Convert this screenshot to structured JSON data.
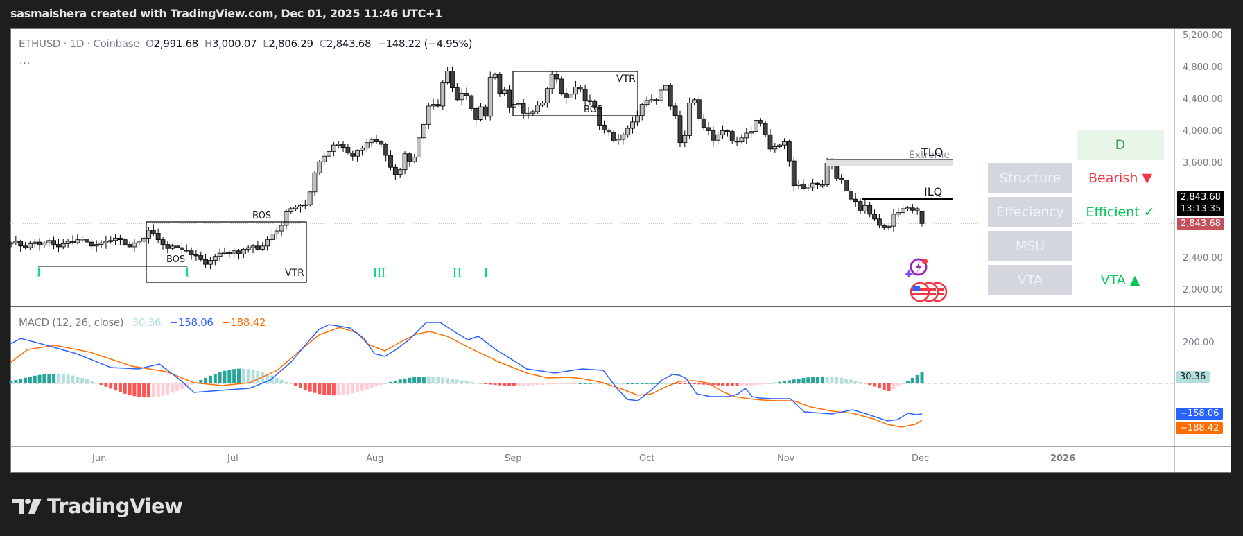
{
  "header": {
    "title": "sasmaishera created with TradingView.com, Dec 01, 2025 11:46 UTC+1"
  },
  "legend": {
    "symbol": "ETHUSD · 1D · Coinbase",
    "o_label": "O",
    "o": "2,991.68",
    "h_label": "H",
    "h": "3,000.07",
    "l_label": "L",
    "l": "2,806.29",
    "c_label": "C",
    "c": "2,843.68",
    "change": "−148.22 (−4.95%)",
    "more": "..."
  },
  "price_axis": {
    "labels": [
      "5,200.00",
      "4,800.00",
      "4,400.00",
      "4,000.00",
      "3,600.00",
      "2,400.00",
      "2,000.00"
    ],
    "values": [
      5200,
      4800,
      4400,
      4000,
      3600,
      2400,
      2000
    ],
    "last_price": "2,843.68",
    "countdown": "13:13:35",
    "close_tag": "2,843.68"
  },
  "macd": {
    "title": "MACD (12, 26, close)",
    "hist": "30.36",
    "macd": "−158.06",
    "signal": "−188.42",
    "axis_label": "200.00",
    "colors": {
      "macd": "#2962ff",
      "signal": "#ff6d00",
      "hist_up": "#26a69a",
      "hist_up_light": "#b2dfdb",
      "hist_dn": "#ff5252",
      "hist_dn_light": "#ffcdd2"
    }
  },
  "time_axis": {
    "labels": [
      "Jun",
      "Jul",
      "Aug",
      "Sep",
      "Oct",
      "Nov",
      "Dec",
      "2026"
    ]
  },
  "annotations": {
    "bos1": "BOS",
    "bos2": "BOS",
    "bos3": "BOS",
    "vtr1": "VTR",
    "vtr2": "VTR",
    "tlq": "TLQ",
    "ilq": "ILQ",
    "extreme": "Extreme"
  },
  "table": {
    "timeframe": "D",
    "rows": [
      {
        "label": "Structure",
        "value": "Bearish ▼",
        "color": "#f23645"
      },
      {
        "label": "Effeciency",
        "value": "Efficient ✓",
        "color": "#00c853"
      },
      {
        "label": "MSU",
        "value": "",
        "color": "#00c853"
      },
      {
        "label": "VTA",
        "value": "VTA ▲",
        "color": "#00c853"
      }
    ]
  },
  "colors": {
    "bg": "#1e1e1e",
    "up_body": "#c0c0c0",
    "down_body": "#404040",
    "wick": "#000000",
    "price_tag": "#c4505c"
  },
  "footer": {
    "brand": "TradingView"
  },
  "chart_data": {
    "type": "candlestick",
    "symbol": "ETHUSD",
    "interval": "1D",
    "exchange": "Coinbase",
    "last": {
      "open": 2991.68,
      "high": 3000.07,
      "low": 2806.29,
      "close": 2843.68,
      "change": -148.22,
      "change_pct": -4.95
    },
    "ylim": [
      1900,
      5300
    ],
    "x_ticks": [
      "Jun",
      "Jul",
      "Aug",
      "Sep",
      "Oct",
      "Nov",
      "Dec",
      "2026"
    ],
    "closes": [
      2600,
      2620,
      2560,
      2540,
      2590,
      2610,
      2570,
      2600,
      2630,
      2580,
      2550,
      2590,
      2620,
      2600,
      2640,
      2650,
      2610,
      2560,
      2580,
      2600,
      2620,
      2630,
      2660,
      2640,
      2580,
      2550,
      2600,
      2620,
      2660,
      2760,
      2720,
      2640,
      2580,
      2530,
      2560,
      2540,
      2510,
      2500,
      2450,
      2440,
      2390,
      2330,
      2380,
      2430,
      2470,
      2480,
      2470,
      2500,
      2460,
      2520,
      2540,
      2560,
      2520,
      2560,
      2640,
      2710,
      2750,
      2820,
      2990,
      3030,
      3050,
      3070,
      3080,
      3240,
      3480,
      3620,
      3690,
      3750,
      3830,
      3840,
      3800,
      3730,
      3690,
      3760,
      3790,
      3860,
      3900,
      3870,
      3840,
      3700,
      3550,
      3460,
      3520,
      3720,
      3620,
      3680,
      3920,
      4090,
      4320,
      4340,
      4320,
      4620,
      4760,
      4550,
      4400,
      4480,
      4450,
      4290,
      4150,
      4310,
      4190,
      4680,
      4720,
      4480,
      4520,
      4300,
      4340,
      4350,
      4230,
      4230,
      4250,
      4330,
      4360,
      4540,
      4720,
      4660,
      4480,
      4420,
      4470,
      4560,
      4530,
      4390,
      4380,
      4300,
      4080,
      4020,
      3990,
      3880,
      3900,
      3960,
      4040,
      4120,
      4200,
      4340,
      4390,
      4400,
      4390,
      4520,
      4580,
      4320,
      4200,
      3860,
      3950,
      4360,
      4400,
      4160,
      4050,
      4010,
      3890,
      3960,
      4010,
      4000,
      3880,
      3870,
      3920,
      3980,
      4000,
      4140,
      4100,
      3960,
      3780,
      3810,
      3830,
      3870,
      3630,
      3320,
      3340,
      3280,
      3300,
      3350,
      3330,
      3330,
      3600,
      3570,
      3410,
      3390,
      3250,
      3150,
      3120,
      3000,
      3070,
      2960,
      2900,
      2820,
      2790,
      2810,
      2960,
      2980,
      3030,
      3040,
      3010,
      3030,
      2843.68
    ]
  }
}
